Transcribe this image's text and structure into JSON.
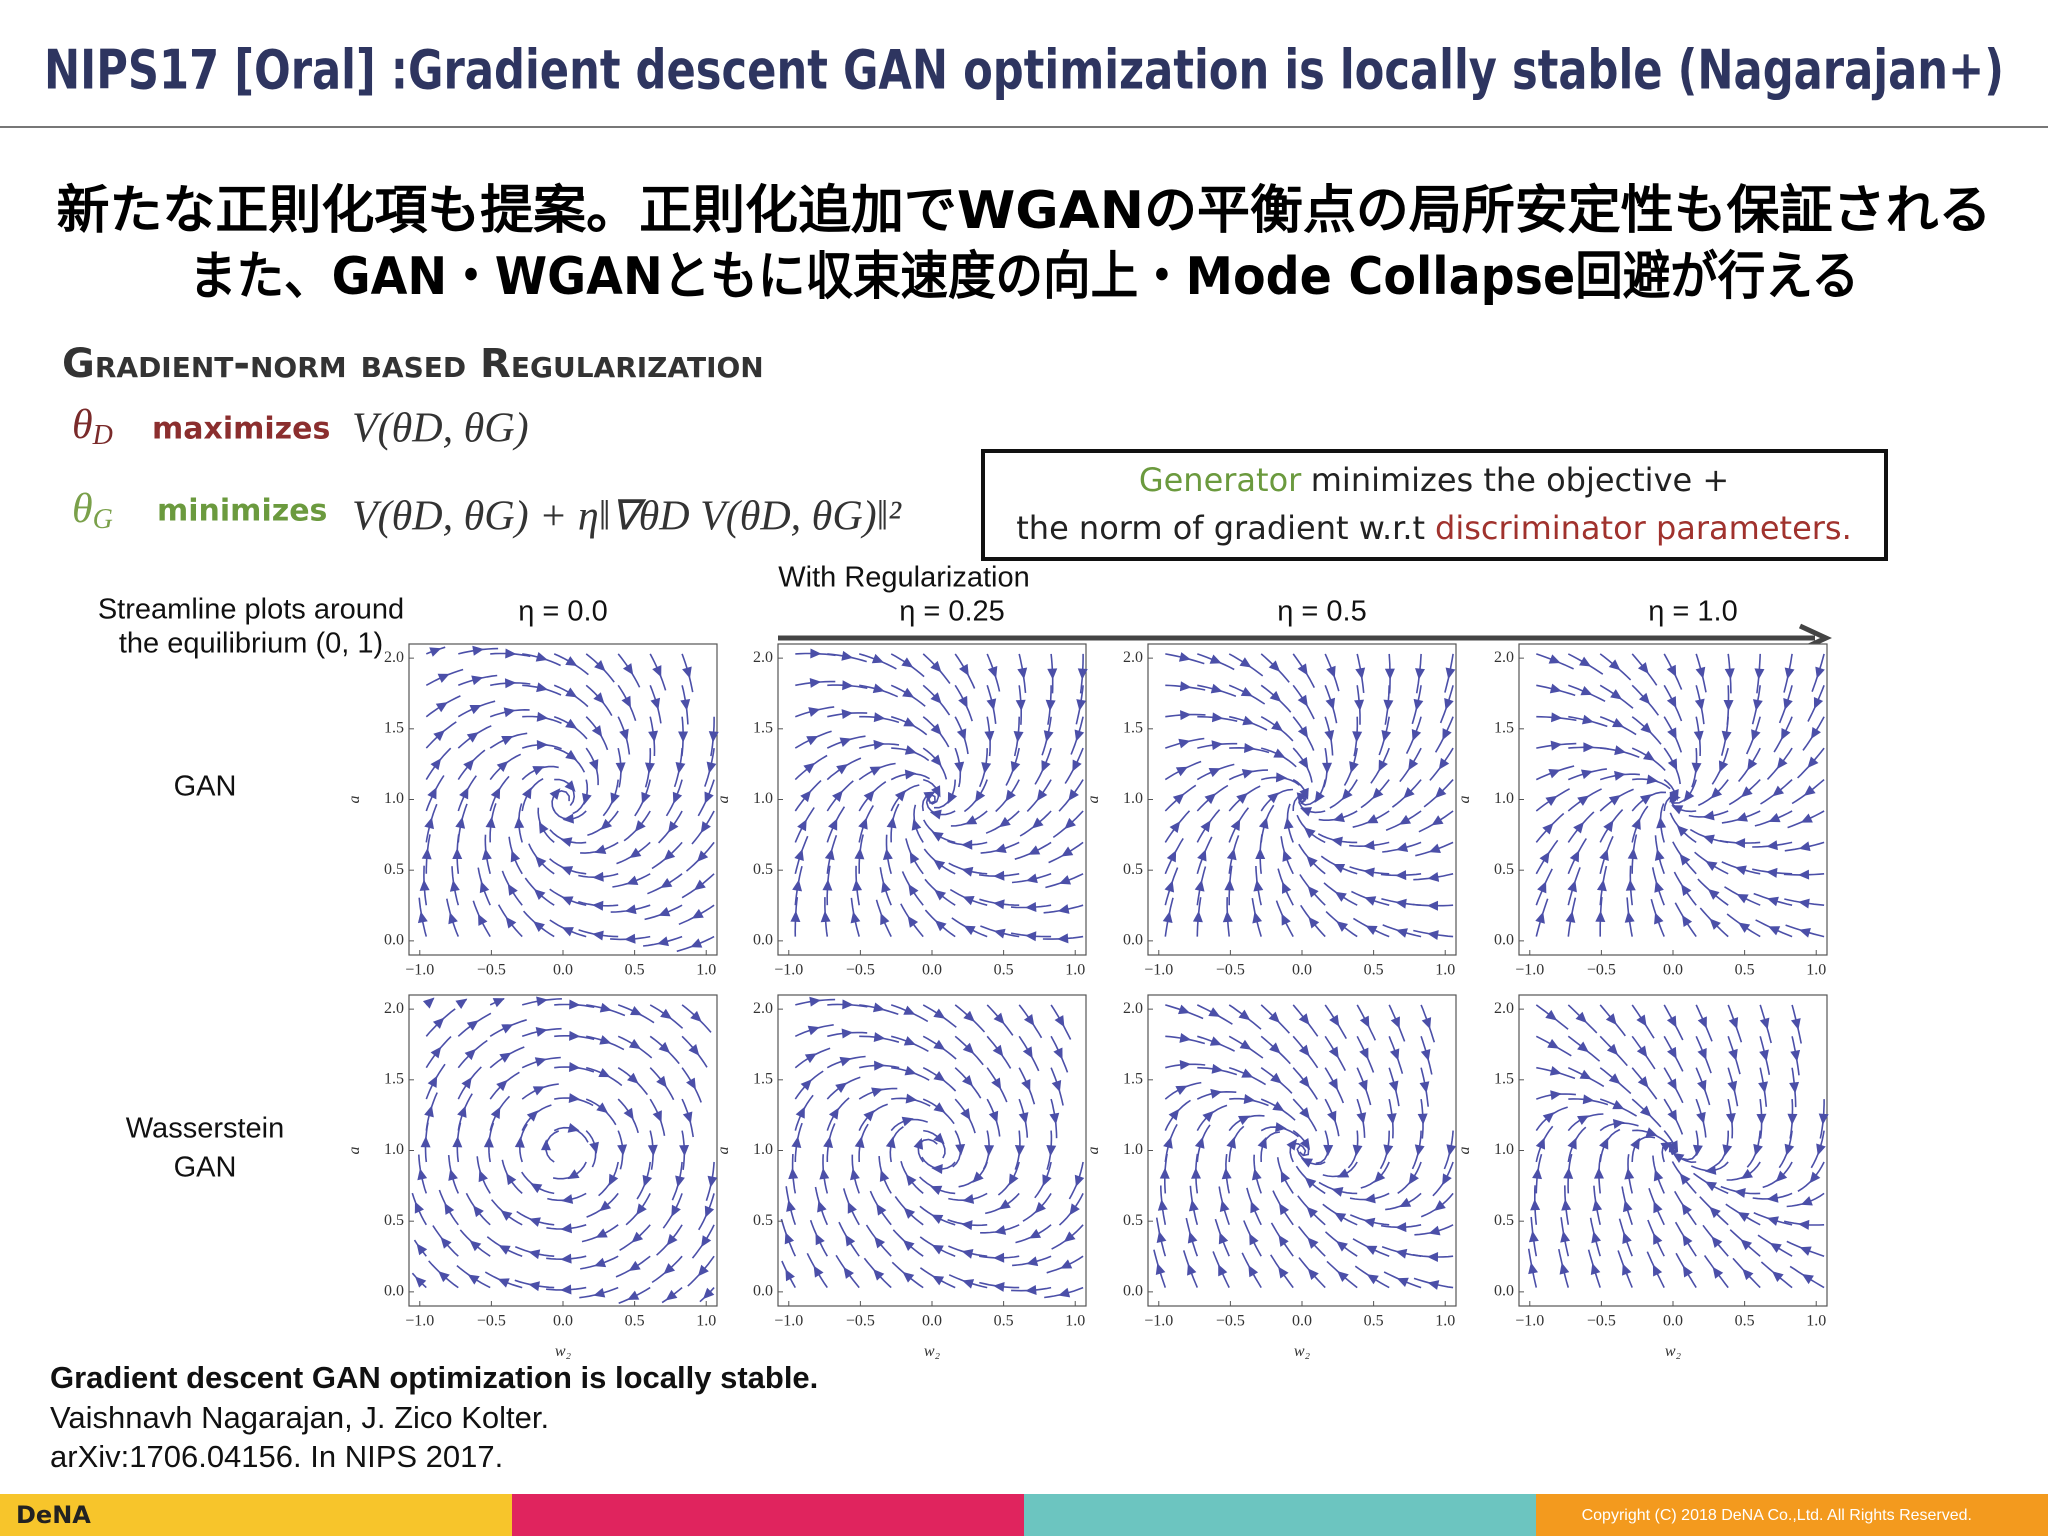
{
  "header": {
    "title": "NIPS17 [Oral] :Gradient descent GAN optimization is locally stable (Nagarajan+)"
  },
  "summary": {
    "lines": [
      "新たな正則化項も提案。正則化追加でWGANの平衡点の局所安定性も保証される",
      "また、GAN・WGANともに収束速度の向上・Mode Collapse回避が行える"
    ]
  },
  "method": {
    "heading": "Gradient-norm based Regularization",
    "rows": [
      {
        "symbol": "θ",
        "sub": "D",
        "verb": "maximizes",
        "expr": "V(θD, θG)"
      },
      {
        "symbol": "θ",
        "sub": "G",
        "verb": "minimizes",
        "expr": "V(θD, θG) + η‖∇θD V(θD, θG)‖²"
      }
    ]
  },
  "callout": {
    "line1": {
      "highlight": "Generator",
      "text": "minimizes the objective +"
    },
    "line2": {
      "text": "the norm of gradient w.r.t",
      "highlight": "discriminator parameters."
    }
  },
  "figure": {
    "caption": [
      "Streamline plots around",
      "the equilibrium (0, 1)"
    ],
    "arrow_label": "With Regularization",
    "columns": [
      "η = 0.0",
      "η = 0.25",
      "η = 0.5",
      "η = 1.0"
    ],
    "rows": [
      [
        "GAN"
      ],
      [
        "Wasserstein",
        "GAN"
      ]
    ],
    "xticks": [
      "−1.0",
      "−0.5",
      "0.0",
      "0.5",
      "1.0"
    ],
    "yticks": [
      "0.0",
      "0.5",
      "1.0",
      "1.5",
      "2.0"
    ],
    "xlabel": "w₂",
    "ylabel": "a"
  },
  "reference": {
    "title": "Gradient descent GAN optimization is locally stable.",
    "authors": "Vaishnavh Nagarajan, J. Zico Kolter.",
    "venue": "arXiv:1706.04156. In NIPS 2017."
  },
  "footer": {
    "logo": "DeNA",
    "copyright": "Copyright (C) 2018 DeNA Co.,Ltd. All Rights Reserved."
  }
}
